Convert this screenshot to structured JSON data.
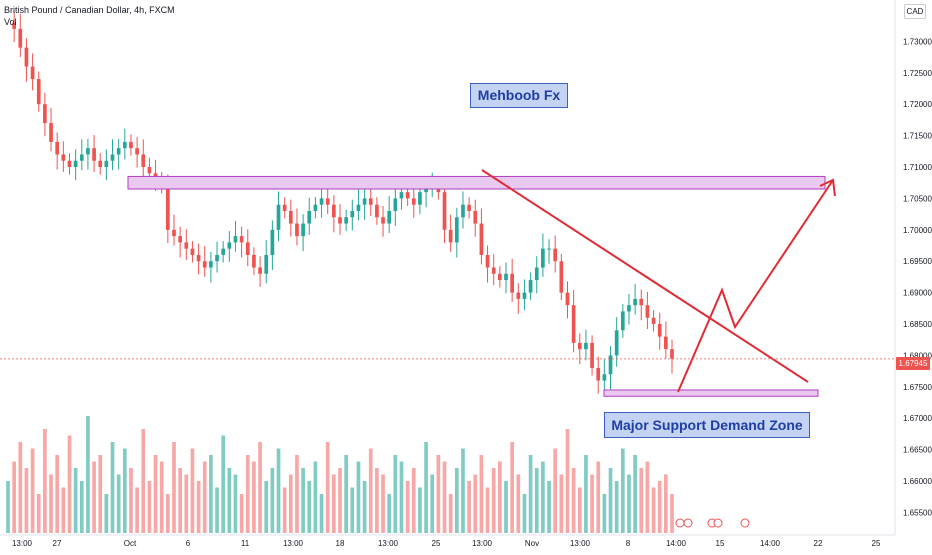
{
  "header": {
    "title": "British Pound / Canadian Dollar, 4h, FXCM",
    "volume_label": "Vol",
    "currency_badge": "CAD"
  },
  "annotations": {
    "author_label": "Mehboob Fx",
    "zone_label": "Major Support Demand Zone"
  },
  "chart_data": {
    "type": "candlestick",
    "symbol": "GBPCAD",
    "interval": "4h",
    "ylim": [
      1.653,
      1.735
    ],
    "y_ticks": [
      "1.73000",
      "1.72500",
      "1.72000",
      "1.71500",
      "1.71000",
      "1.70500",
      "1.70000",
      "1.69500",
      "1.69000",
      "1.68500",
      "1.68000",
      "1.67500",
      "1.67000",
      "1.66500",
      "1.66000",
      "1.65500"
    ],
    "x_ticks": [
      "13:00",
      "27",
      "Oct",
      "6",
      "11",
      "13:00",
      "18",
      "13:00",
      "25",
      "13:00",
      "Nov",
      "13:00",
      "8",
      "14:00",
      "15",
      "14:00",
      "22",
      "25"
    ],
    "last_price": "1.67945",
    "close_path": [
      1.733,
      1.732,
      1.729,
      1.726,
      1.724,
      1.72,
      1.717,
      1.714,
      1.712,
      1.711,
      1.71,
      1.711,
      1.712,
      1.713,
      1.711,
      1.71,
      1.711,
      1.712,
      1.713,
      1.714,
      1.713,
      1.712,
      1.71,
      1.709,
      1.708,
      1.707,
      1.7,
      1.699,
      1.698,
      1.697,
      1.696,
      1.695,
      1.694,
      1.695,
      1.696,
      1.697,
      1.698,
      1.699,
      1.698,
      1.696,
      1.694,
      1.693,
      1.696,
      1.7,
      1.704,
      1.703,
      1.701,
      1.699,
      1.701,
      1.703,
      1.704,
      1.705,
      1.704,
      1.702,
      1.701,
      1.702,
      1.703,
      1.704,
      1.705,
      1.704,
      1.702,
      1.701,
      1.703,
      1.705,
      1.706,
      1.705,
      1.704,
      1.706,
      1.707,
      1.707,
      1.706,
      1.7,
      1.698,
      1.702,
      1.704,
      1.703,
      1.701,
      1.696,
      1.694,
      1.693,
      1.692,
      1.693,
      1.69,
      1.689,
      1.69,
      1.692,
      1.694,
      1.697,
      1.697,
      1.695,
      1.69,
      1.688,
      1.682,
      1.681,
      1.682,
      1.678,
      1.676,
      1.677,
      1.68,
      1.684,
      1.687,
      1.688,
      1.689,
      1.688,
      1.686,
      1.685,
      1.683,
      1.681,
      1.6795
    ],
    "volume_heights": [
      0.4,
      0.55,
      0.7,
      0.5,
      0.65,
      0.3,
      0.8,
      0.45,
      0.6,
      0.35,
      0.75,
      0.5,
      0.4,
      0.9,
      0.55,
      0.6,
      0.3,
      0.7,
      0.45,
      0.65,
      0.5,
      0.35,
      0.8,
      0.4,
      0.6,
      0.55,
      0.3,
      0.7,
      0.5,
      0.45,
      0.65,
      0.4,
      0.55,
      0.6,
      0.35,
      0.75,
      0.5,
      0.45,
      0.3,
      0.6,
      0.55,
      0.7,
      0.4,
      0.5,
      0.65,
      0.35,
      0.45,
      0.6,
      0.5,
      0.4,
      0.55,
      0.3,
      0.7,
      0.45,
      0.5,
      0.6,
      0.35,
      0.55,
      0.4,
      0.65,
      0.5,
      0.45,
      0.3,
      0.6,
      0.55,
      0.4,
      0.5,
      0.35,
      0.7,
      0.45,
      0.6,
      0.55,
      0.3,
      0.5,
      0.65,
      0.4,
      0.45,
      0.6,
      0.35,
      0.5,
      0.55,
      0.4,
      0.7,
      0.45,
      0.3,
      0.6,
      0.5,
      0.55,
      0.4,
      0.65,
      0.45,
      0.8,
      0.5,
      0.35,
      0.6,
      0.45,
      0.55,
      0.3,
      0.5,
      0.4,
      0.65,
      0.45,
      0.6,
      0.5,
      0.55,
      0.35,
      0.4,
      0.45,
      0.3
    ],
    "resistance_zone": {
      "from": 1.7065,
      "to": 1.7085
    },
    "support_zone": {
      "from": 1.6735,
      "to": 1.6745
    },
    "grid": false,
    "colors": {
      "up": "#26a69a",
      "down": "#ef5350",
      "vol_up": "#80cbc4",
      "vol_down": "#f7a8a6",
      "zone_fill": "#e9c9ef",
      "zone_border": "#b23cc6",
      "drawing": "#e02b35",
      "label_fill": "#c5d3f2",
      "label_text": "#1f3fa6"
    }
  }
}
